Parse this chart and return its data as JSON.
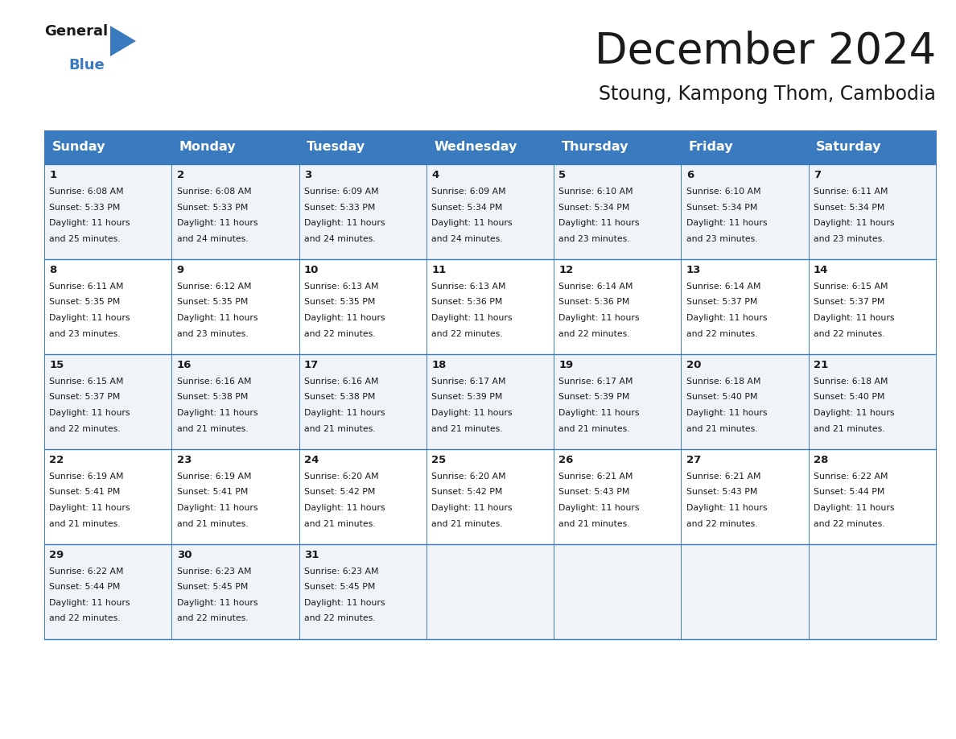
{
  "title": "December 2024",
  "subtitle": "Stoung, Kampong Thom, Cambodia",
  "header_bg": "#3a7bbf",
  "header_text_color": "#ffffff",
  "cell_bg_odd": "#f0f4f8",
  "cell_bg_even": "#ffffff",
  "border_color": "#3a7bbf",
  "grid_color": "#c0c8d0",
  "days_of_week": [
    "Sunday",
    "Monday",
    "Tuesday",
    "Wednesday",
    "Thursday",
    "Friday",
    "Saturday"
  ],
  "calendar_data": [
    [
      {
        "day": 1,
        "sunrise": "6:08 AM",
        "sunset": "5:33 PM",
        "daylight": "11 hours and 25 minutes."
      },
      {
        "day": 2,
        "sunrise": "6:08 AM",
        "sunset": "5:33 PM",
        "daylight": "11 hours and 24 minutes."
      },
      {
        "day": 3,
        "sunrise": "6:09 AM",
        "sunset": "5:33 PM",
        "daylight": "11 hours and 24 minutes."
      },
      {
        "day": 4,
        "sunrise": "6:09 AM",
        "sunset": "5:34 PM",
        "daylight": "11 hours and 24 minutes."
      },
      {
        "day": 5,
        "sunrise": "6:10 AM",
        "sunset": "5:34 PM",
        "daylight": "11 hours and 23 minutes."
      },
      {
        "day": 6,
        "sunrise": "6:10 AM",
        "sunset": "5:34 PM",
        "daylight": "11 hours and 23 minutes."
      },
      {
        "day": 7,
        "sunrise": "6:11 AM",
        "sunset": "5:34 PM",
        "daylight": "11 hours and 23 minutes."
      }
    ],
    [
      {
        "day": 8,
        "sunrise": "6:11 AM",
        "sunset": "5:35 PM",
        "daylight": "11 hours and 23 minutes."
      },
      {
        "day": 9,
        "sunrise": "6:12 AM",
        "sunset": "5:35 PM",
        "daylight": "11 hours and 23 minutes."
      },
      {
        "day": 10,
        "sunrise": "6:13 AM",
        "sunset": "5:35 PM",
        "daylight": "11 hours and 22 minutes."
      },
      {
        "day": 11,
        "sunrise": "6:13 AM",
        "sunset": "5:36 PM",
        "daylight": "11 hours and 22 minutes."
      },
      {
        "day": 12,
        "sunrise": "6:14 AM",
        "sunset": "5:36 PM",
        "daylight": "11 hours and 22 minutes."
      },
      {
        "day": 13,
        "sunrise": "6:14 AM",
        "sunset": "5:37 PM",
        "daylight": "11 hours and 22 minutes."
      },
      {
        "day": 14,
        "sunrise": "6:15 AM",
        "sunset": "5:37 PM",
        "daylight": "11 hours and 22 minutes."
      }
    ],
    [
      {
        "day": 15,
        "sunrise": "6:15 AM",
        "sunset": "5:37 PM",
        "daylight": "11 hours and 22 minutes."
      },
      {
        "day": 16,
        "sunrise": "6:16 AM",
        "sunset": "5:38 PM",
        "daylight": "11 hours and 21 minutes."
      },
      {
        "day": 17,
        "sunrise": "6:16 AM",
        "sunset": "5:38 PM",
        "daylight": "11 hours and 21 minutes."
      },
      {
        "day": 18,
        "sunrise": "6:17 AM",
        "sunset": "5:39 PM",
        "daylight": "11 hours and 21 minutes."
      },
      {
        "day": 19,
        "sunrise": "6:17 AM",
        "sunset": "5:39 PM",
        "daylight": "11 hours and 21 minutes."
      },
      {
        "day": 20,
        "sunrise": "6:18 AM",
        "sunset": "5:40 PM",
        "daylight": "11 hours and 21 minutes."
      },
      {
        "day": 21,
        "sunrise": "6:18 AM",
        "sunset": "5:40 PM",
        "daylight": "11 hours and 21 minutes."
      }
    ],
    [
      {
        "day": 22,
        "sunrise": "6:19 AM",
        "sunset": "5:41 PM",
        "daylight": "11 hours and 21 minutes."
      },
      {
        "day": 23,
        "sunrise": "6:19 AM",
        "sunset": "5:41 PM",
        "daylight": "11 hours and 21 minutes."
      },
      {
        "day": 24,
        "sunrise": "6:20 AM",
        "sunset": "5:42 PM",
        "daylight": "11 hours and 21 minutes."
      },
      {
        "day": 25,
        "sunrise": "6:20 AM",
        "sunset": "5:42 PM",
        "daylight": "11 hours and 21 minutes."
      },
      {
        "day": 26,
        "sunrise": "6:21 AM",
        "sunset": "5:43 PM",
        "daylight": "11 hours and 21 minutes."
      },
      {
        "day": 27,
        "sunrise": "6:21 AM",
        "sunset": "5:43 PM",
        "daylight": "11 hours and 22 minutes."
      },
      {
        "day": 28,
        "sunrise": "6:22 AM",
        "sunset": "5:44 PM",
        "daylight": "11 hours and 22 minutes."
      }
    ],
    [
      {
        "day": 29,
        "sunrise": "6:22 AM",
        "sunset": "5:44 PM",
        "daylight": "11 hours and 22 minutes."
      },
      {
        "day": 30,
        "sunrise": "6:23 AM",
        "sunset": "5:45 PM",
        "daylight": "11 hours and 22 minutes."
      },
      {
        "day": 31,
        "sunrise": "6:23 AM",
        "sunset": "5:45 PM",
        "daylight": "11 hours and 22 minutes."
      },
      null,
      null,
      null,
      null
    ]
  ],
  "logo_general_color": "#1a1a1a",
  "logo_blue_color": "#3a7bbf",
  "title_fontsize": 38,
  "subtitle_fontsize": 17,
  "header_fontsize": 11.5,
  "day_num_fontsize": 9.5,
  "cell_text_fontsize": 7.8
}
